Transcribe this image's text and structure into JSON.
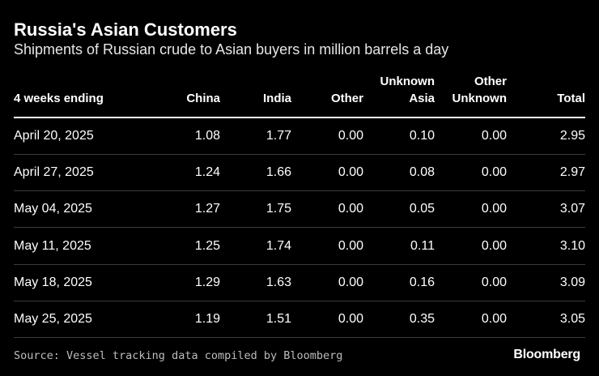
{
  "header": {
    "title": "Russia's Asian Customers",
    "subtitle": "Shipments of Russian crude to Asian buyers in million barrels a day"
  },
  "columns": [
    {
      "line1": "",
      "line2": "4 weeks ending"
    },
    {
      "line1": "",
      "line2": "China"
    },
    {
      "line1": "",
      "line2": "India"
    },
    {
      "line1": "",
      "line2": "Other"
    },
    {
      "line1": "Unknown",
      "line2": "Asia"
    },
    {
      "line1": "Other",
      "line2": "Unknown"
    },
    {
      "line1": "",
      "line2": "Total"
    }
  ],
  "footer": {
    "source": "Source: Vessel tracking data compiled by Bloomberg",
    "brand": "Bloomberg"
  },
  "chart_data": {
    "type": "table",
    "title": "Russia's Asian Customers",
    "subtitle": "Shipments of Russian crude to Asian buyers in million barrels a day",
    "columns": [
      "4 weeks ending",
      "China",
      "India",
      "Other",
      "Unknown Asia",
      "Other Unknown",
      "Total"
    ],
    "rows": [
      [
        "April 20, 2025",
        "1.08",
        "1.77",
        "0.00",
        "0.10",
        "0.00",
        "2.95"
      ],
      [
        "April 27, 2025",
        "1.24",
        "1.66",
        "0.00",
        "0.08",
        "0.00",
        "2.97"
      ],
      [
        "May 04, 2025",
        "1.27",
        "1.75",
        "0.00",
        "0.05",
        "0.00",
        "3.07"
      ],
      [
        "May 11, 2025",
        "1.25",
        "1.74",
        "0.00",
        "0.11",
        "0.00",
        "3.10"
      ],
      [
        "May 18, 2025",
        "1.29",
        "1.63",
        "0.00",
        "0.16",
        "0.00",
        "3.09"
      ],
      [
        "May 25, 2025",
        "1.19",
        "1.51",
        "0.00",
        "0.35",
        "0.00",
        "3.05"
      ]
    ]
  }
}
